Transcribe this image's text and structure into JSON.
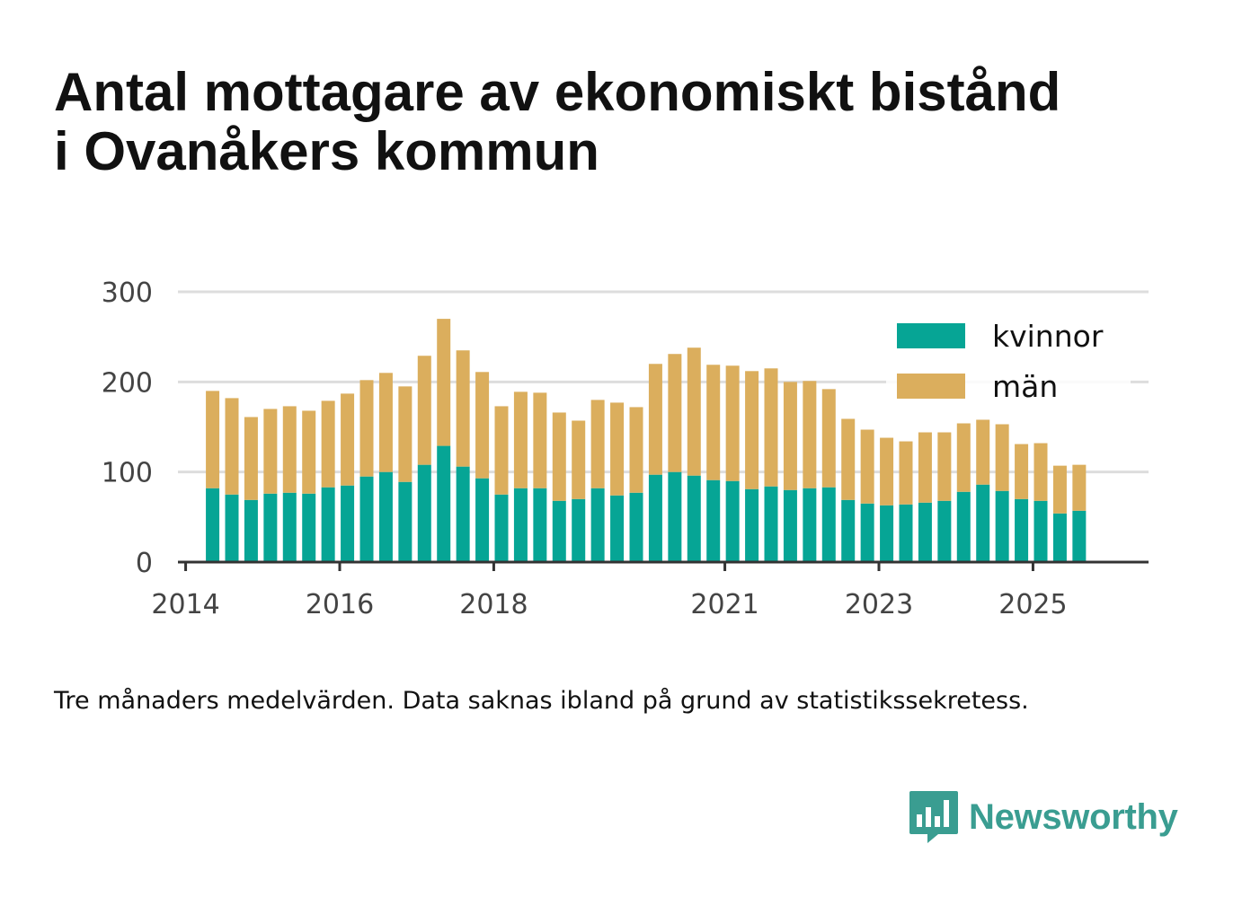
{
  "title_lines": [
    "Antal mottagare av ekonomiskt bistånd",
    "i Ovanåkers kommun"
  ],
  "caption": "Tre månaders medelvärden. Data saknas ibland på grund av statistikssekretess.",
  "brand": {
    "name": "Newsworthy",
    "icon": "newsworthy-logo-icon",
    "color": "#3a9d91"
  },
  "colors": {
    "kvinnor": "#06a595",
    "man": "#dbae5d",
    "grid": "#dddddd",
    "axis": "#333333"
  },
  "chart_data": {
    "type": "bar",
    "stacked": true,
    "title": "Antal mottagare av ekonomiskt bistånd i Ovanåkers kommun",
    "xlabel": "",
    "ylabel": "",
    "ylim": [
      0,
      300
    ],
    "yticks": [
      0,
      100,
      200,
      300
    ],
    "grid": true,
    "legend_position": "top-right",
    "x_unit": "years since 2014",
    "xlim": [
      -0.1,
      12.5
    ],
    "xticks": [
      {
        "label": "2014",
        "value": 0
      },
      {
        "label": "2016",
        "value": 2
      },
      {
        "label": "2018",
        "value": 4
      },
      {
        "label": "2021",
        "value": 7
      },
      {
        "label": "2023",
        "value": 9
      },
      {
        "label": "2025",
        "value": 11
      }
    ],
    "x": [
      0.35,
      0.6,
      0.85,
      1.1,
      1.35,
      1.6,
      1.85,
      2.1,
      2.35,
      2.6,
      2.85,
      3.1,
      3.35,
      3.6,
      3.85,
      4.1,
      4.35,
      4.6,
      4.85,
      5.1,
      5.35,
      5.6,
      5.85,
      6.1,
      6.35,
      6.6,
      6.85,
      7.1,
      7.35,
      7.6,
      7.85,
      8.1,
      8.35,
      8.6,
      8.85,
      9.1,
      9.35,
      9.6,
      9.85,
      10.1,
      10.35,
      10.6,
      10.85,
      11.1,
      11.35,
      11.6
    ],
    "series": [
      {
        "name": "kvinnor",
        "color": "#06a595",
        "values": [
          82,
          75,
          69,
          76,
          77,
          76,
          83,
          85,
          95,
          100,
          89,
          108,
          129,
          106,
          93,
          75,
          82,
          82,
          68,
          70,
          82,
          74,
          77,
          97,
          100,
          96,
          91,
          90,
          81,
          84,
          80,
          82,
          83,
          69,
          65,
          63,
          64,
          66,
          68,
          78,
          86,
          79,
          70,
          68,
          54,
          57
        ]
      },
      {
        "name": "män",
        "color": "#dbae5d",
        "values": [
          108,
          107,
          92,
          94,
          96,
          92,
          96,
          102,
          107,
          110,
          106,
          121,
          141,
          129,
          118,
          98,
          107,
          106,
          98,
          87,
          98,
          103,
          95,
          123,
          131,
          142,
          128,
          128,
          131,
          131,
          120,
          119,
          109,
          90,
          82,
          75,
          70,
          78,
          76,
          76,
          72,
          74,
          61,
          64,
          53,
          51
        ]
      }
    ]
  }
}
